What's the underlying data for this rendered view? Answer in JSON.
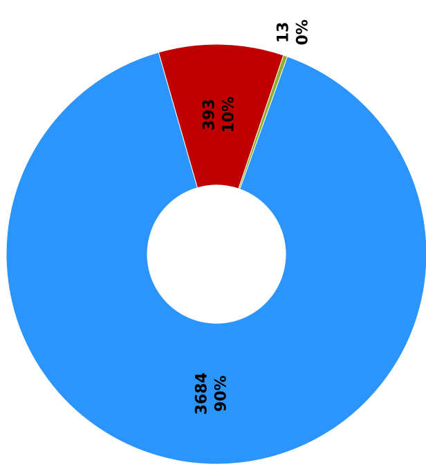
{
  "chart_data": {
    "type": "donut",
    "values": [
      393,
      13,
      3684
    ],
    "percent_labels": [
      "10%",
      "0%",
      "90%"
    ],
    "colors": [
      "#c00000",
      "#8fad2a",
      "#2b95fb"
    ]
  }
}
